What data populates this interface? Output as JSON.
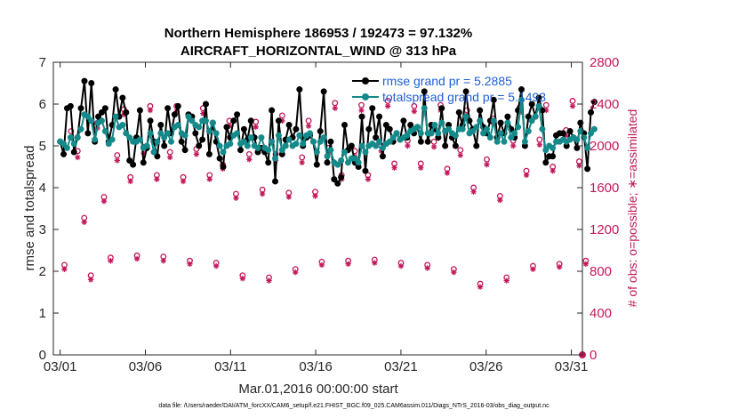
{
  "chart_data": {
    "type": "line",
    "title_line1": "Northern Hemisphere 186953 / 192473 = 97.132%",
    "title_line2": "AIRCRAFT_HORIZONTAL_WIND @ 313 hPa",
    "xlabel": "Mar.01,2016 00:00:00 start",
    "ylabel_left": "rmse and totalspread",
    "ylabel_right": "# of obs: o=possible; ∗=assimilated",
    "footer": "data file: /Users/raeder/DAI/ATM_forcXX/CAM6_setup/f.e21.FHIST_BGC.f09_025.CAM6assim.011/Diags_NTrS_2016-03/obs_diag_output.nc",
    "xlim": [
      0.6,
      31.65
    ],
    "ylim_left": [
      0,
      7
    ],
    "ylim_right": [
      0,
      2800
    ],
    "xticks": [
      1,
      6,
      11,
      16,
      21,
      26,
      31
    ],
    "xtick_labels": [
      "03/01",
      "03/06",
      "03/11",
      "03/16",
      "03/21",
      "03/26",
      "03/31"
    ],
    "yticks_left": [
      "0",
      "1",
      "2",
      "3",
      "4",
      "5",
      "6",
      "7"
    ],
    "yticks_right": [
      "0",
      "400",
      "800",
      "1200",
      "1600",
      "2000",
      "2400",
      "2800"
    ],
    "legend": [
      {
        "label": "rmse grand pr = 5.2885",
        "color": "#000000"
      },
      {
        "label": "totalspread grand pr = 5.1493",
        "color": "#148a8a"
      }
    ],
    "colors": {
      "rmse": "#000000",
      "spread": "#148a8a",
      "obs": "#c2185b"
    },
    "series": [
      {
        "name": "rmse",
        "values": [
          5.1,
          4.8,
          5.9,
          5.95,
          4.85,
          5.2,
          5.9,
          6.55,
          5.3,
          6.5,
          5.1,
          5.7,
          5.8,
          5.9,
          5.1,
          5.5,
          6.35,
          5.7,
          6.15,
          5.8,
          4.65,
          4.55,
          5.2,
          5.85,
          4.6,
          4.95,
          5.6,
          5.1,
          4.75,
          5.5,
          5.0,
          5.9,
          5.3,
          5.75,
          5.95,
          5.1,
          4.9,
          5.75,
          5.7,
          5.3,
          5.0,
          5.15,
          6.0,
          4.8,
          5.55,
          5.1,
          4.7,
          4.5,
          5.45,
          5.2,
          5.6,
          5.75,
          4.9,
          5.4,
          5.15,
          5.6,
          5.2,
          4.85,
          4.95,
          4.85,
          4.6,
          5.85,
          4.15,
          5.6,
          4.8,
          5.15,
          5.5,
          5.2,
          5.4,
          6.35,
          5.0,
          5.2,
          5.25,
          5.1,
          4.55,
          5.35,
          6.3,
          4.6,
          5.1,
          4.2,
          4.1,
          4.25,
          5.5,
          4.9,
          5.0,
          4.6,
          4.5,
          5.7,
          4.4,
          5.4,
          5.9,
          5.2,
          5.7,
          4.75,
          5.5,
          5.4,
          5.1,
          5.3,
          5.15,
          5.6,
          5.2,
          5.5,
          5.3,
          5.45,
          5.1,
          6.3,
          5.1,
          5.5,
          5.4,
          5.2,
          5.9,
          5.0,
          5.5,
          5.2,
          5.0,
          5.8,
          5.5,
          6.3,
          5.6,
          5.4,
          5.0,
          5.85,
          5.45,
          5.3,
          5.6,
          6.1,
          5.2,
          5.55,
          5.3,
          5.7,
          5.4,
          5.2,
          5.85,
          6.35,
          5.0,
          5.7,
          6.0,
          5.7,
          6.15,
          5.85,
          4.6,
          4.75,
          4.75,
          5.25,
          5.3,
          5.3,
          5.0,
          5.35,
          5.2,
          4.95,
          5.55,
          5.3,
          4.45,
          5.8,
          6.05
        ]
      },
      {
        "name": "totalspread",
        "values": [
          5.1,
          5.05,
          4.95,
          5.2,
          5.05,
          5.2,
          5.4,
          5.75,
          5.7,
          5.6,
          5.15,
          5.55,
          5.6,
          5.35,
          5.05,
          5.15,
          5.7,
          5.45,
          5.5,
          5.3,
          5.2,
          5.1,
          5.1,
          5.15,
          4.95,
          5.0,
          5.3,
          4.85,
          5.1,
          5.3,
          5.2,
          5.3,
          5.1,
          5.45,
          5.5,
          5.3,
          5.25,
          5.7,
          5.6,
          5.5,
          5.45,
          5.6,
          5.6,
          5.35,
          5.55,
          5.3,
          5.0,
          4.85,
          5.0,
          5.05,
          5.25,
          5.3,
          5.05,
          5.1,
          5.0,
          5.2,
          5.0,
          4.95,
          5.2,
          4.95,
          4.9,
          5.1,
          4.7,
          5.25,
          4.9,
          5.0,
          5.15,
          5.0,
          5.05,
          5.25,
          5.05,
          5.25,
          5.3,
          5.1,
          4.85,
          5.1,
          5.2,
          4.75,
          4.9,
          4.6,
          4.55,
          4.65,
          4.85,
          4.6,
          4.7,
          4.7,
          4.6,
          5.0,
          4.85,
          5.0,
          5.05,
          5.0,
          5.1,
          4.95,
          5.05,
          5.1,
          5.2,
          5.3,
          5.15,
          5.2,
          5.25,
          5.35,
          5.4,
          5.45,
          5.3,
          5.9,
          5.3,
          5.3,
          5.5,
          5.3,
          5.55,
          5.35,
          5.4,
          5.3,
          5.25,
          5.4,
          5.4,
          5.7,
          5.3,
          5.35,
          5.45,
          5.6,
          5.3,
          5.4,
          5.2,
          5.6,
          5.1,
          5.3,
          5.1,
          5.55,
          5.2,
          5.3,
          5.45,
          6.1,
          5.1,
          5.35,
          5.6,
          5.7,
          5.95,
          5.4,
          4.9,
          5.0,
          4.95,
          5.1,
          5.1,
          5.15,
          5.1,
          5.15,
          5.2,
          5.15,
          5.35,
          5.2,
          4.95,
          5.3,
          5.4
        ]
      },
      {
        "name": "obs_possible",
        "values": [
          860,
          2140,
          1950,
          1310,
          760,
          2220,
          1510,
          930,
          1910,
          2350,
          1700,
          950,
          1990,
          2380,
          1720,
          940,
          1940,
          2380,
          1700,
          900,
          1970,
          2360,
          1720,
          880,
          1820,
          2240,
          1540,
          760,
          1920,
          2230,
          1580,
          740,
          1920,
          2290,
          1550,
          820,
          1890,
          2240,
          1560,
          890,
          1980,
          2410,
          1720,
          900,
          1950,
          2390,
          1720,
          910,
          2000,
          2430,
          1830,
          880,
          2050,
          2380,
          1830,
          860,
          2040,
          2390,
          1780,
          820,
          1960,
          2340,
          1600,
          680,
          1870,
          2260,
          1520,
          740,
          2050,
          2370,
          1760,
          850,
          2060,
          2390,
          1800,
          870,
          2150,
          2430,
          1850,
          900
        ]
      },
      {
        "name": "obs_assimilated",
        "values": [
          820,
          2080,
          1890,
          1270,
          720,
          2170,
          1470,
          900,
          1860,
          2300,
          1660,
          920,
          1930,
          2340,
          1680,
          900,
          1890,
          2330,
          1660,
          870,
          1920,
          2310,
          1680,
          850,
          1780,
          2190,
          1500,
          730,
          1870,
          2180,
          1540,
          710,
          1860,
          2240,
          1510,
          790,
          1840,
          2190,
          1520,
          860,
          1930,
          2360,
          1680,
          870,
          1900,
          2340,
          1680,
          880,
          1950,
          2380,
          1790,
          850,
          2000,
          2330,
          1790,
          830,
          1990,
          2340,
          1740,
          790,
          1910,
          2290,
          1560,
          650,
          1820,
          2210,
          1480,
          710,
          2000,
          2320,
          1720,
          820,
          2010,
          2340,
          1760,
          840,
          2100,
          2380,
          1810,
          870
        ]
      }
    ]
  }
}
